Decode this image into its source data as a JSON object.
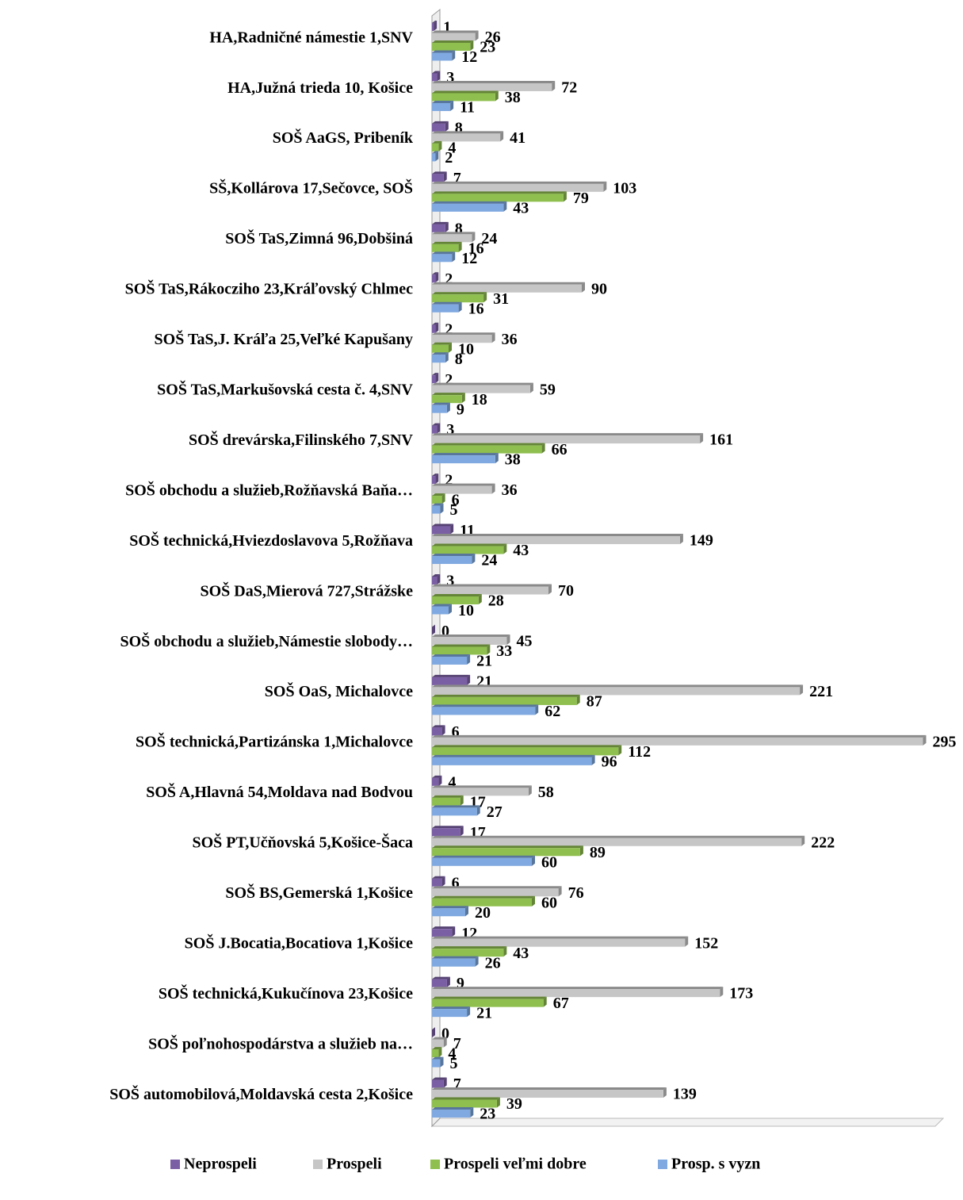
{
  "chart_data": {
    "type": "bar",
    "orientation": "horizontal",
    "categories": [
      "HA,Radničné námestie 1,SNV",
      "HA,Južná trieda 10, Košice",
      "SOŠ AaGS, Pribeník ",
      "SŠ,Kollárova 17,Sečovce, SOŠ",
      "SOŠ TaS,Zimná 96,Dobšiná",
      "SOŠ TaS,Rákocziho 23,Kráľovský Chlmec",
      "SOŠ TaS,J. Kráľa 25,Veľké Kapušany",
      "SOŠ TaS,Markušovská cesta č. 4,SNV",
      "SOŠ drevárska,Filinského 7,SNV",
      "SOŠ obchodu a služieb,Rožňavská Baňa…",
      "SOŠ technická,Hviezdoslavova 5,Rožňava",
      "SOŠ DaS,Mierová 727,Strážske",
      "SOŠ obchodu a služieb,Námestie slobody…",
      "SOŠ OaS, Michalovce ",
      "SOŠ technická,Partizánska 1,Michalovce",
      "SOŠ A,Hlavná 54,Moldava nad Bodvou",
      "SOŠ PT,Učňovská 5,Košice-Šaca",
      "SOŠ BS,Gemerská 1,Košice",
      "SOŠ J.Bocatia,Bocatiova 1,Košice",
      "SOŠ technická,Kukučínova 23,Košice",
      "SOŠ poľnohospodárstva a služieb na…",
      "SOŠ automobilová,Moldavská cesta 2,Košice"
    ],
    "series": [
      {
        "name": "Neprospeli",
        "color": "#7b5fa5",
        "values": [
          1,
          3,
          8,
          7,
          8,
          2,
          2,
          2,
          3,
          2,
          11,
          3,
          0,
          21,
          6,
          4,
          17,
          6,
          12,
          9,
          0,
          7
        ]
      },
      {
        "name": "Prospeli",
        "color": "#c6c6c6",
        "values": [
          26,
          72,
          41,
          103,
          24,
          90,
          36,
          59,
          161,
          36,
          149,
          70,
          45,
          221,
          295,
          58,
          222,
          76,
          152,
          173,
          7,
          139
        ]
      },
      {
        "name": "Prospeli veľmi dobre",
        "color": "#8fbf4f",
        "values": [
          23,
          38,
          4,
          79,
          16,
          31,
          10,
          18,
          66,
          6,
          43,
          28,
          33,
          87,
          112,
          17,
          89,
          60,
          43,
          67,
          4,
          39
        ]
      },
      {
        "name": "Prosp. s vyzn",
        "color": "#7fa9e0",
        "values": [
          12,
          11,
          2,
          43,
          12,
          16,
          8,
          9,
          38,
          5,
          24,
          10,
          21,
          62,
          96,
          27,
          60,
          20,
          26,
          21,
          5,
          23
        ]
      }
    ],
    "xlim": [
      0,
      300
    ],
    "legend": "bottom"
  }
}
